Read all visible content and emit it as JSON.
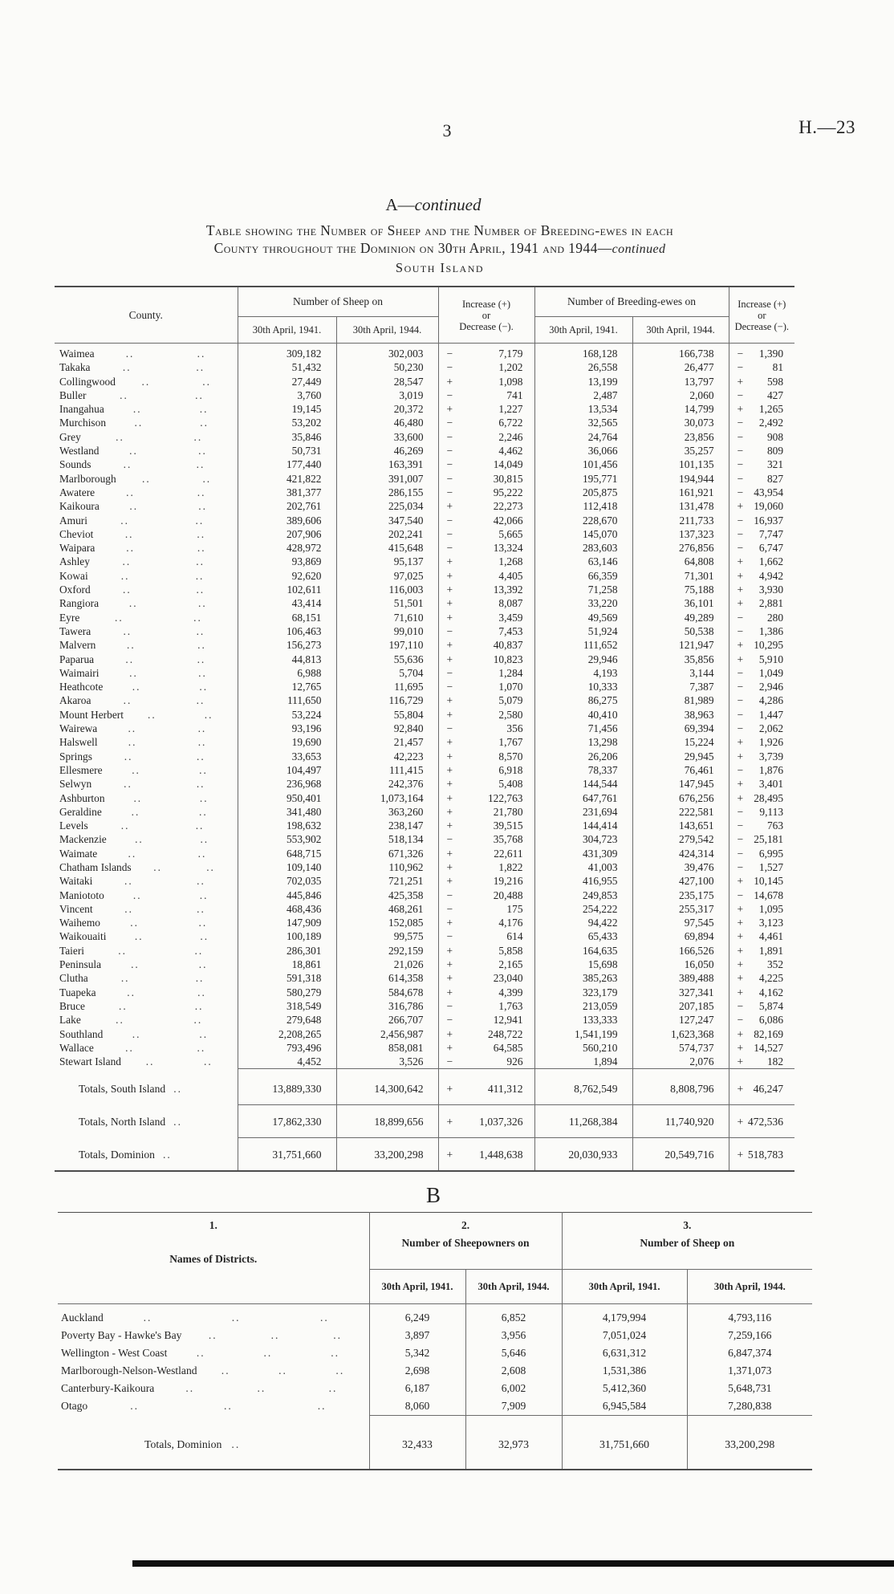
{
  "page": {
    "page_number": "3",
    "doc_ref": "H.—23"
  },
  "section": {
    "letter": "A",
    "dash": "—",
    "continued": "continued"
  },
  "title": {
    "line1": "Table showing the Number of Sheep and the Number of Breeding-ewes in each",
    "line2": "County throughout the Dominion on 30th April, 1941 and 1944",
    "dash": "—",
    "continued": "continued",
    "subtitle": "South Island"
  },
  "misc": {
    "leader": ".."
  },
  "table_a": {
    "headers": {
      "county": "County.",
      "sheep_group": "Number of Sheep on",
      "ewes_group": "Number of Breeding-ewes on",
      "increase_lines": [
        "Increase (+)",
        "or",
        "Decrease (−)."
      ],
      "date_1941": "30th April, 1941.",
      "date_1944": "30th April, 1944."
    },
    "rows": [
      [
        "Waimea",
        "309,182",
        "302,003",
        "−",
        "7,179",
        "168,128",
        "166,738",
        "−",
        "1,390"
      ],
      [
        "Takaka",
        "51,432",
        "50,230",
        "−",
        "1,202",
        "26,558",
        "26,477",
        "−",
        "81"
      ],
      [
        "Collingwood",
        "27,449",
        "28,547",
        "+",
        "1,098",
        "13,199",
        "13,797",
        "+",
        "598"
      ],
      [
        "Buller",
        "3,760",
        "3,019",
        "−",
        "741",
        "2,487",
        "2,060",
        "−",
        "427"
      ],
      [
        "Inangahua",
        "19,145",
        "20,372",
        "+",
        "1,227",
        "13,534",
        "14,799",
        "+",
        "1,265"
      ],
      [
        "Murchison",
        "53,202",
        "46,480",
        "−",
        "6,722",
        "32,565",
        "30,073",
        "−",
        "2,492"
      ],
      [
        "Grey",
        "35,846",
        "33,600",
        "−",
        "2,246",
        "24,764",
        "23,856",
        "−",
        "908"
      ],
      [
        "Westland",
        "50,731",
        "46,269",
        "−",
        "4,462",
        "36,066",
        "35,257",
        "−",
        "809"
      ],
      [
        "Sounds",
        "177,440",
        "163,391",
        "−",
        "14,049",
        "101,456",
        "101,135",
        "−",
        "321"
      ],
      [
        "Marlborough",
        "421,822",
        "391,007",
        "−",
        "30,815",
        "195,771",
        "194,944",
        "−",
        "827"
      ],
      [
        "Awatere",
        "381,377",
        "286,155",
        "−",
        "95,222",
        "205,875",
        "161,921",
        "−",
        "43,954"
      ],
      [
        "Kaikoura",
        "202,761",
        "225,034",
        "+",
        "22,273",
        "112,418",
        "131,478",
        "+",
        "19,060"
      ],
      [
        "Amuri",
        "389,606",
        "347,540",
        "−",
        "42,066",
        "228,670",
        "211,733",
        "−",
        "16,937"
      ],
      [
        "Cheviot",
        "207,906",
        "202,241",
        "−",
        "5,665",
        "145,070",
        "137,323",
        "−",
        "7,747"
      ],
      [
        "Waipara",
        "428,972",
        "415,648",
        "−",
        "13,324",
        "283,603",
        "276,856",
        "−",
        "6,747"
      ],
      [
        "Ashley",
        "93,869",
        "95,137",
        "+",
        "1,268",
        "63,146",
        "64,808",
        "+",
        "1,662"
      ],
      [
        "Kowai",
        "92,620",
        "97,025",
        "+",
        "4,405",
        "66,359",
        "71,301",
        "+",
        "4,942"
      ],
      [
        "Oxford",
        "102,611",
        "116,003",
        "+",
        "13,392",
        "71,258",
        "75,188",
        "+",
        "3,930"
      ],
      [
        "Rangiora",
        "43,414",
        "51,501",
        "+",
        "8,087",
        "33,220",
        "36,101",
        "+",
        "2,881"
      ],
      [
        "Eyre",
        "68,151",
        "71,610",
        "+",
        "3,459",
        "49,569",
        "49,289",
        "−",
        "280"
      ],
      [
        "Tawera",
        "106,463",
        "99,010",
        "−",
        "7,453",
        "51,924",
        "50,538",
        "−",
        "1,386"
      ],
      [
        "Malvern",
        "156,273",
        "197,110",
        "+",
        "40,837",
        "111,652",
        "121,947",
        "+",
        "10,295"
      ],
      [
        "Paparua",
        "44,813",
        "55,636",
        "+",
        "10,823",
        "29,946",
        "35,856",
        "+",
        "5,910"
      ],
      [
        "Waimairi",
        "6,988",
        "5,704",
        "−",
        "1,284",
        "4,193",
        "3,144",
        "−",
        "1,049"
      ],
      [
        "Heathcote",
        "12,765",
        "11,695",
        "−",
        "1,070",
        "10,333",
        "7,387",
        "−",
        "2,946"
      ],
      [
        "Akaroa",
        "111,650",
        "116,729",
        "+",
        "5,079",
        "86,275",
        "81,989",
        "−",
        "4,286"
      ],
      [
        "Mount Herbert",
        "53,224",
        "55,804",
        "+",
        "2,580",
        "40,410",
        "38,963",
        "−",
        "1,447"
      ],
      [
        "Wairewa",
        "93,196",
        "92,840",
        "−",
        "356",
        "71,456",
        "69,394",
        "−",
        "2,062"
      ],
      [
        "Halswell",
        "19,690",
        "21,457",
        "+",
        "1,767",
        "13,298",
        "15,224",
        "+",
        "1,926"
      ],
      [
        "Springs",
        "33,653",
        "42,223",
        "+",
        "8,570",
        "26,206",
        "29,945",
        "+",
        "3,739"
      ],
      [
        "Ellesmere",
        "104,497",
        "111,415",
        "+",
        "6,918",
        "78,337",
        "76,461",
        "−",
        "1,876"
      ],
      [
        "Selwyn",
        "236,968",
        "242,376",
        "+",
        "5,408",
        "144,544",
        "147,945",
        "+",
        "3,401"
      ],
      [
        "Ashburton",
        "950,401",
        "1,073,164",
        "+",
        "122,763",
        "647,761",
        "676,256",
        "+",
        "28,495"
      ],
      [
        "Geraldine",
        "341,480",
        "363,260",
        "+",
        "21,780",
        "231,694",
        "222,581",
        "−",
        "9,113"
      ],
      [
        "Levels",
        "198,632",
        "238,147",
        "+",
        "39,515",
        "144,414",
        "143,651",
        "−",
        "763"
      ],
      [
        "Mackenzie",
        "553,902",
        "518,134",
        "−",
        "35,768",
        "304,723",
        "279,542",
        "−",
        "25,181"
      ],
      [
        "Waimate",
        "648,715",
        "671,326",
        "+",
        "22,611",
        "431,309",
        "424,314",
        "−",
        "6,995"
      ],
      [
        "Chatham Islands",
        "109,140",
        "110,962",
        "+",
        "1,822",
        "41,003",
        "39,476",
        "−",
        "1,527"
      ],
      [
        "Waitaki",
        "702,035",
        "721,251",
        "+",
        "19,216",
        "416,955",
        "427,100",
        "+",
        "10,145"
      ],
      [
        "Maniototo",
        "445,846",
        "425,358",
        "−",
        "20,488",
        "249,853",
        "235,175",
        "−",
        "14,678"
      ],
      [
        "Vincent",
        "468,436",
        "468,261",
        "−",
        "175",
        "254,222",
        "255,317",
        "+",
        "1,095"
      ],
      [
        "Waihemo",
        "147,909",
        "152,085",
        "+",
        "4,176",
        "94,422",
        "97,545",
        "+",
        "3,123"
      ],
      [
        "Waikouaiti",
        "100,189",
        "99,575",
        "−",
        "614",
        "65,433",
        "69,894",
        "+",
        "4,461"
      ],
      [
        "Taieri",
        "286,301",
        "292,159",
        "+",
        "5,858",
        "164,635",
        "166,526",
        "+",
        "1,891"
      ],
      [
        "Peninsula",
        "18,861",
        "21,026",
        "+",
        "2,165",
        "15,698",
        "16,050",
        "+",
        "352"
      ],
      [
        "Clutha",
        "591,318",
        "614,358",
        "+",
        "23,040",
        "385,263",
        "389,488",
        "+",
        "4,225"
      ],
      [
        "Tuapeka",
        "580,279",
        "584,678",
        "+",
        "4,399",
        "323,179",
        "327,341",
        "+",
        "4,162"
      ],
      [
        "Bruce",
        "318,549",
        "316,786",
        "−",
        "1,763",
        "213,059",
        "207,185",
        "−",
        "5,874"
      ],
      [
        "Lake",
        "279,648",
        "266,707",
        "−",
        "12,941",
        "133,333",
        "127,247",
        "−",
        "6,086"
      ],
      [
        "Southland",
        "2,208,265",
        "2,456,987",
        "+",
        "248,722",
        "1,541,199",
        "1,623,368",
        "+",
        "82,169"
      ],
      [
        "Wallace",
        "793,496",
        "858,081",
        "+",
        "64,585",
        "560,210",
        "574,737",
        "+",
        "14,527"
      ],
      [
        "Stewart Island",
        "4,452",
        "3,526",
        "−",
        "926",
        "1,894",
        "2,076",
        "+",
        "182"
      ]
    ],
    "totals": [
      {
        "label": "Totals, South Island",
        "values": [
          "13,889,330",
          "14,300,642",
          "+",
          "411,312",
          "8,762,549",
          "8,808,796",
          "+",
          "46,247"
        ]
      },
      {
        "label": "Totals, North Island",
        "values": [
          "17,862,330",
          "18,899,656",
          "+",
          "1,037,326",
          "11,268,384",
          "11,740,920",
          "+",
          "472,536"
        ]
      },
      {
        "label": "Totals, Dominion",
        "values": [
          "31,751,660",
          "33,200,298",
          "+",
          "1,448,638",
          "20,030,933",
          "20,549,716",
          "+",
          "518,783"
        ]
      }
    ]
  },
  "table_b": {
    "heading": "B",
    "headers": {
      "col1_no": "1.",
      "col1_label": "Names of Districts.",
      "col2_no": "2.",
      "col2_label": "Number of Sheepowners on",
      "col3_no": "3.",
      "col3_label": "Number of Sheep on",
      "date_1941": "30th April, 1941.",
      "date_1944": "30th April, 1944."
    },
    "rows": [
      [
        "Auckland",
        "6,249",
        "6,852",
        "4,179,994",
        "4,793,116"
      ],
      [
        "Poverty Bay - Hawke's Bay",
        "3,897",
        "3,956",
        "7,051,024",
        "7,259,166"
      ],
      [
        "Wellington - West Coast",
        "5,342",
        "5,646",
        "6,631,312",
        "6,847,374"
      ],
      [
        "Marlborough-Nelson-Westland",
        "2,698",
        "2,608",
        "1,531,386",
        "1,371,073"
      ],
      [
        "Canterbury-Kaikoura",
        "6,187",
        "6,002",
        "5,412,360",
        "5,648,731"
      ],
      [
        "Otago",
        "8,060",
        "7,909",
        "6,945,584",
        "7,280,838"
      ]
    ],
    "totals": {
      "label": "Totals, Dominion",
      "values": [
        "32,433",
        "32,973",
        "31,751,660",
        "33,200,298"
      ]
    }
  }
}
